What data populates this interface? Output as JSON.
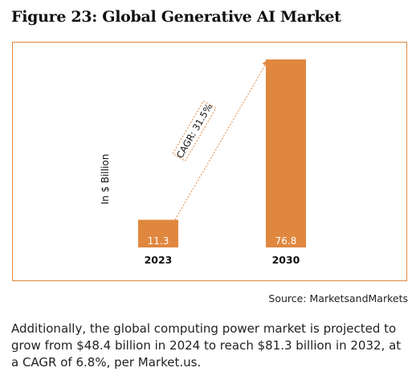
{
  "figure_title": "Figure 23: Global Generative AI Market",
  "source": "Source: MarketsandMarkets",
  "paragraph": "Additionally, the global computing power market is projected to grow from $48.4 billion in 2024 to reach $81.3 billion in 2032, at a CAGR of 6.8%, per Market.us.",
  "colors": {
    "bar": "#e0873f",
    "frame": "#e0873f",
    "bar_label": "#ffffff",
    "text": "#111111"
  },
  "chart_data": {
    "type": "bar",
    "title": "Figure 23: Global Generative AI Market",
    "ylabel": "In $ Billion",
    "categories": [
      "2023",
      "2030"
    ],
    "values": [
      11.3,
      76.8
    ],
    "data_labels": [
      "11.3",
      "76.8"
    ],
    "annotation": "CAGR: 31.5%",
    "ylim": [
      0,
      76.8
    ],
    "grid": false,
    "legend": "none"
  }
}
